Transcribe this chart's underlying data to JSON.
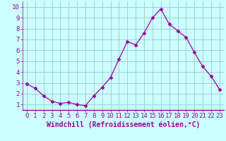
{
  "x": [
    0,
    1,
    2,
    3,
    4,
    5,
    6,
    7,
    8,
    9,
    10,
    11,
    12,
    13,
    14,
    15,
    16,
    17,
    18,
    19,
    20,
    21,
    22,
    23
  ],
  "y": [
    2.9,
    2.5,
    1.8,
    1.3,
    1.1,
    1.2,
    1.0,
    0.9,
    1.8,
    2.6,
    3.5,
    5.2,
    6.8,
    6.5,
    7.6,
    9.0,
    9.8,
    8.4,
    7.8,
    7.2,
    5.8,
    4.5,
    3.6,
    2.4
  ],
  "line_color": "#990099",
  "marker": "D",
  "marker_size": 2.5,
  "bg_color": "#ccffff",
  "grid_color": "#99cccc",
  "xlabel": "Windchill (Refroidissement éolien,°C)",
  "xlabel_color": "#990099",
  "tick_color": "#990099",
  "ylabel_ticks": [
    1,
    2,
    3,
    4,
    5,
    6,
    7,
    8,
    9,
    10
  ],
  "xlim": [
    -0.5,
    23.5
  ],
  "ylim": [
    0.5,
    10.5
  ],
  "xticks": [
    0,
    1,
    2,
    3,
    4,
    5,
    6,
    7,
    8,
    9,
    10,
    11,
    12,
    13,
    14,
    15,
    16,
    17,
    18,
    19,
    20,
    21,
    22,
    23
  ],
  "font_size_axis": 6.5,
  "font_size_label": 7.0,
  "line_width": 0.9
}
